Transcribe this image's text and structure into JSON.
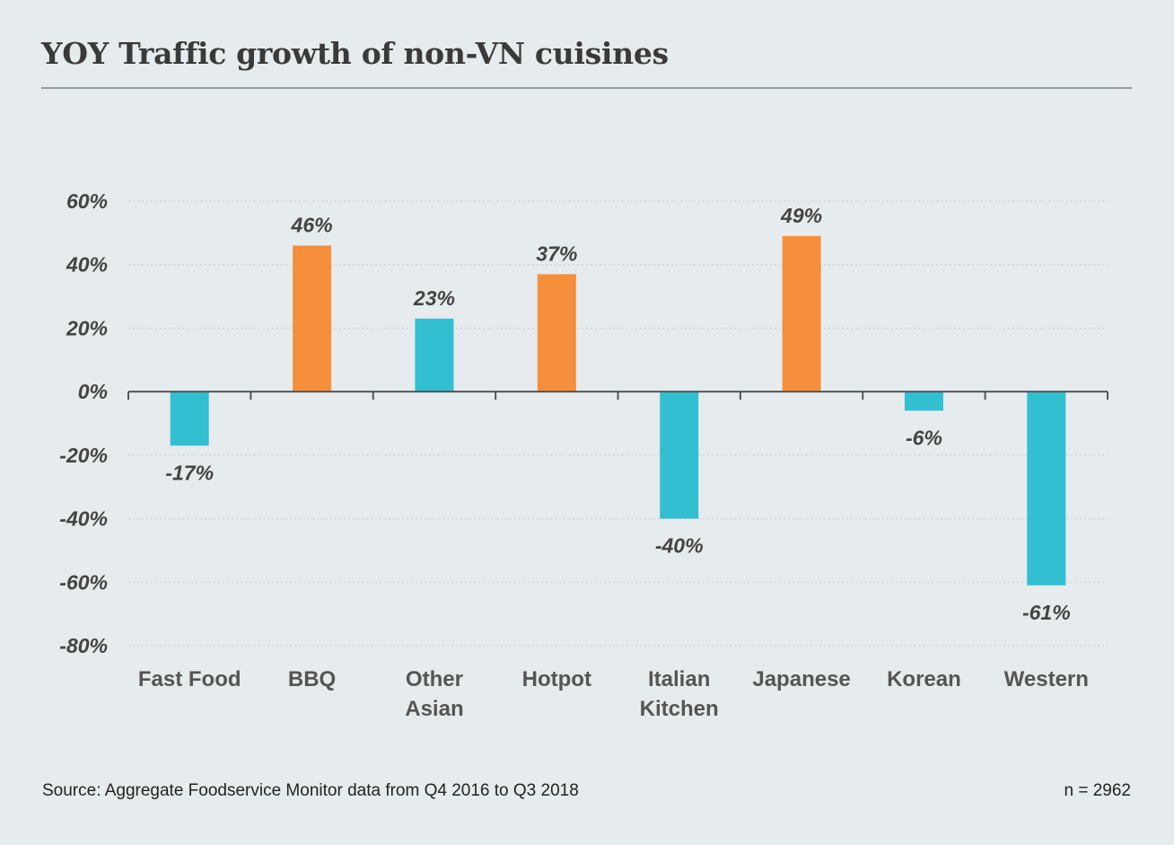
{
  "title": "YOY Traffic growth of non-VN cuisines",
  "source": "Source: Aggregate Foodservice Monitor data from Q4 2016 to Q3 2018",
  "sample": "n = 2962",
  "colors": {
    "positive": "#f58f3c",
    "negative": "#32bfd1",
    "background": "#e6ebed",
    "axis": "#555555",
    "grid": "#c9cdd0"
  },
  "chart_data": {
    "type": "bar",
    "title": "YOY Traffic growth of non-VN cuisines",
    "categories": [
      [
        "Fast Food"
      ],
      [
        "BBQ"
      ],
      [
        "Other",
        "Asian"
      ],
      [
        "Hotpot"
      ],
      [
        "Italian",
        "Kitchen"
      ],
      [
        "Japanese"
      ],
      [
        "Korean"
      ],
      [
        "Western"
      ]
    ],
    "values": [
      -17,
      46,
      23,
      37,
      -40,
      49,
      -6,
      -61
    ],
    "value_labels": [
      "-17%",
      "46%",
      "23%",
      "37%",
      "-40%",
      "49%",
      "-6%",
      "-61%"
    ],
    "bar_colors": [
      "negative",
      "positive",
      "negative",
      "positive",
      "negative",
      "positive",
      "negative",
      "negative"
    ],
    "ylim": [
      -80,
      60
    ],
    "yticks": [
      60,
      40,
      20,
      0,
      -20,
      -40,
      -60,
      -80
    ],
    "ytick_labels": [
      "60%",
      "40%",
      "20%",
      "0%",
      "-20%",
      "-40%",
      "-60%",
      "-80%"
    ],
    "xlabel": "",
    "ylabel": "",
    "grid": true
  }
}
